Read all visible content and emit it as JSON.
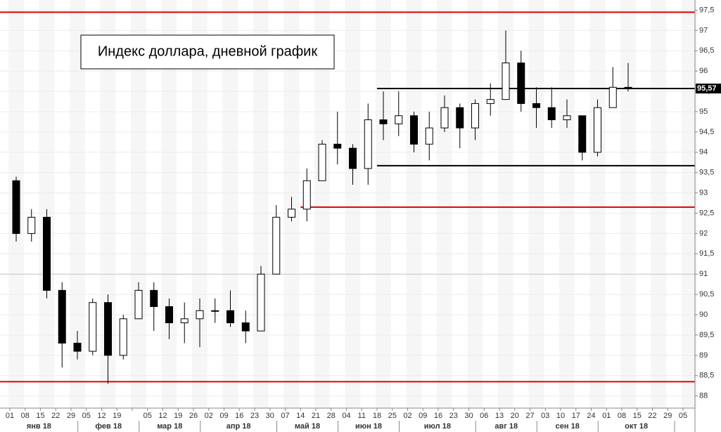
{
  "chart_data": {
    "type": "candlestick",
    "title": "Индекс доллара, дневной график",
    "categories": [
      "01",
      "08",
      "15",
      "22",
      "29",
      "05",
      "12",
      "19",
      null,
      "05",
      "12",
      "19",
      "26",
      "02",
      "09",
      "16",
      "23",
      "30",
      "07",
      "14",
      "21",
      "28",
      "04",
      "11",
      "18",
      "25",
      "02",
      "09",
      "16",
      "23",
      "30",
      "06",
      "13",
      "20",
      "27",
      "03",
      "10",
      "17",
      "24",
      "01",
      "08",
      "15",
      "22",
      "29",
      "05"
    ],
    "months": [
      "янв 18",
      "фев 18",
      "мар 18",
      "апр 18",
      "май 18",
      "июн 18",
      "июл 18",
      "авг 18",
      "сен 18",
      "окт 18"
    ],
    "ohlc": [
      [
        93.3,
        93.4,
        91.8,
        92.0
      ],
      [
        92.0,
        92.6,
        91.8,
        92.4
      ],
      [
        92.4,
        92.6,
        90.4,
        90.6
      ],
      [
        90.6,
        90.8,
        88.7,
        89.3
      ],
      [
        89.3,
        89.6,
        88.9,
        89.1
      ],
      [
        89.1,
        90.4,
        89.0,
        90.3
      ],
      [
        90.3,
        90.5,
        88.3,
        89.0
      ],
      [
        89.0,
        90.0,
        88.9,
        89.9
      ],
      [
        89.9,
        90.8,
        89.9,
        90.6
      ],
      [
        90.6,
        90.8,
        89.6,
        90.2
      ],
      [
        90.2,
        90.4,
        89.4,
        89.8
      ],
      [
        89.8,
        90.3,
        89.3,
        89.9
      ],
      [
        89.9,
        90.4,
        89.2,
        90.1
      ],
      [
        90.1,
        90.4,
        89.8,
        90.1
      ],
      [
        90.1,
        90.6,
        89.7,
        89.8
      ],
      [
        89.8,
        90.1,
        89.3,
        89.6
      ],
      [
        89.6,
        91.2,
        89.6,
        91.0
      ],
      [
        91.0,
        92.7,
        91.0,
        92.4
      ],
      [
        92.4,
        92.9,
        92.3,
        92.6
      ],
      [
        92.6,
        93.6,
        92.3,
        93.3
      ],
      [
        93.3,
        94.3,
        93.3,
        94.2
      ],
      [
        94.2,
        95.0,
        93.7,
        94.1
      ],
      [
        94.1,
        94.2,
        93.2,
        93.6
      ],
      [
        93.6,
        95.2,
        93.2,
        94.8
      ],
      [
        94.8,
        95.5,
        94.3,
        94.7
      ],
      [
        94.7,
        95.5,
        94.4,
        94.9
      ],
      [
        94.9,
        95.0,
        94.0,
        94.2
      ],
      [
        94.2,
        95.0,
        93.8,
        94.6
      ],
      [
        94.6,
        95.4,
        94.5,
        95.1
      ],
      [
        95.1,
        95.2,
        94.1,
        94.6
      ],
      [
        94.6,
        95.3,
        94.3,
        95.2
      ],
      [
        95.2,
        95.7,
        94.9,
        95.3
      ],
      [
        95.3,
        97.0,
        95.3,
        96.2
      ],
      [
        96.2,
        96.5,
        95.0,
        95.2
      ],
      [
        95.2,
        95.6,
        94.6,
        95.1
      ],
      [
        95.1,
        95.6,
        94.6,
        94.8
      ],
      [
        94.8,
        95.3,
        94.6,
        94.9
      ],
      [
        94.9,
        94.9,
        93.8,
        94.0
      ],
      [
        94.0,
        95.3,
        93.9,
        95.1
      ],
      [
        95.1,
        96.1,
        95.1,
        95.6
      ],
      [
        95.6,
        96.2,
        95.5,
        95.57
      ]
    ],
    "last_price": {
      "value": 95.57,
      "label": "95,57"
    },
    "levels": [
      {
        "value": 97.45,
        "color": "#e00000",
        "from": 0
      },
      {
        "value": 92.65,
        "color": "#e00000",
        "from": 19
      },
      {
        "value": 88.35,
        "color": "#e00000",
        "from": 0
      },
      {
        "value": 95.57,
        "color": "#000000",
        "from": 24
      },
      {
        "value": 93.67,
        "color": "#000000",
        "from": 24
      },
      {
        "value": 91.0,
        "color": "#c8c8c8",
        "from": 0
      }
    ],
    "ylim": [
      87.7,
      97.75
    ],
    "yticks": [
      88,
      {
        "value": 88.5,
        "label": "88,5"
      },
      89,
      {
        "value": 89.5,
        "label": "89,5"
      },
      90,
      {
        "value": 90.5,
        "label": "90,5"
      },
      91,
      {
        "value": 91.5,
        "label": "91,5"
      },
      92,
      {
        "value": 92.5,
        "label": "92,5"
      },
      93,
      {
        "value": 93.5,
        "label": "93,5"
      },
      94,
      {
        "value": 94.5,
        "label": "94,5"
      },
      95,
      {
        "value": 95.5,
        "label": "95,5"
      },
      96,
      {
        "value": 96.5,
        "label": "96,5"
      },
      97,
      {
        "value": 97.5,
        "label": "97,5"
      }
    ],
    "grid": true
  }
}
